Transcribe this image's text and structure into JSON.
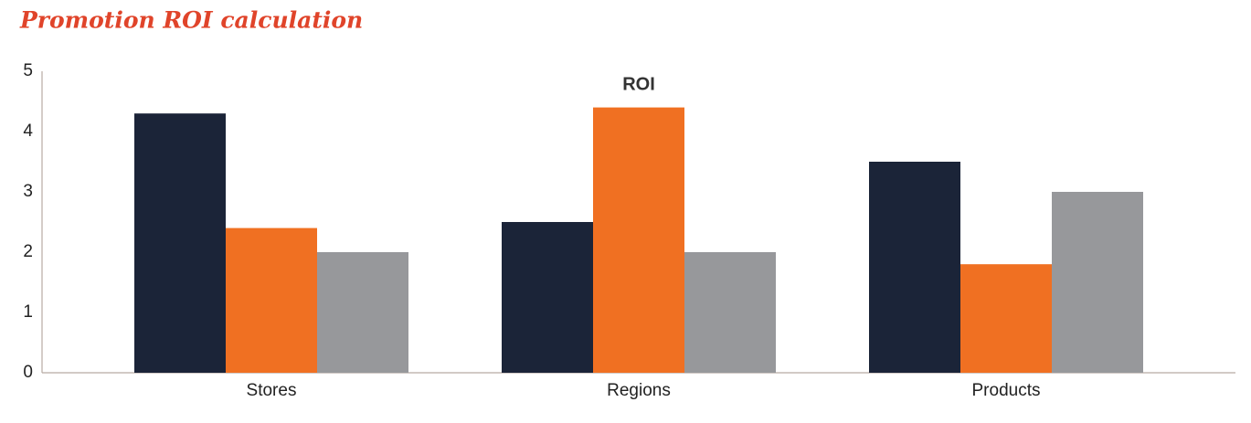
{
  "chart_data": {
    "type": "bar",
    "page_title": "Promotion ROI calculation",
    "title": "ROI",
    "categories": [
      "Stores",
      "Regions",
      "Products"
    ],
    "series": [
      {
        "color": "#1b2438",
        "values": [
          4.3,
          2.5,
          3.5
        ]
      },
      {
        "color": "#f07022",
        "values": [
          2.4,
          4.4,
          1.8
        ]
      },
      {
        "color": "#97989b",
        "values": [
          2.0,
          2.0,
          3.0
        ]
      }
    ],
    "ylim": [
      0,
      5
    ],
    "yticks": [
      0,
      1,
      2,
      3,
      4,
      5
    ],
    "grid": false
  }
}
